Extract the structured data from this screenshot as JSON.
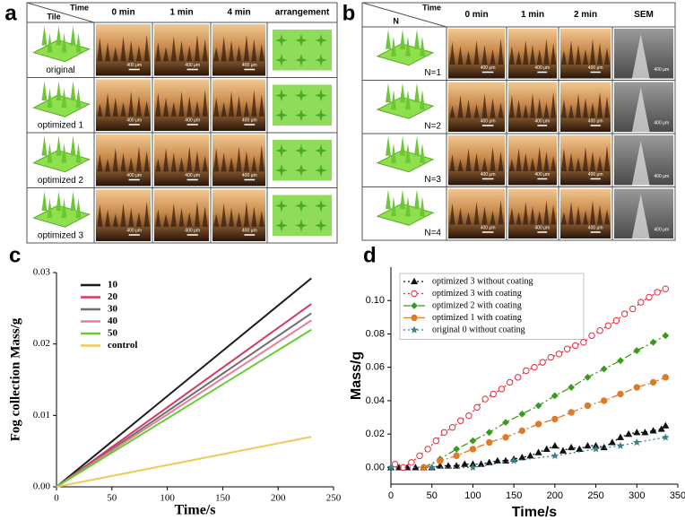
{
  "panels": {
    "a": {
      "label": "a",
      "corner_top": "Time",
      "corner_bottom": "Tile",
      "columns": [
        "0 min",
        "1 min",
        "4 min",
        "arrangement"
      ],
      "rows": [
        "original",
        "optimized 1",
        "optimized 2",
        "optimized 3"
      ],
      "scale_bar": "400 μm"
    },
    "b": {
      "label": "b",
      "corner_top": "Time",
      "corner_bottom": "N",
      "columns": [
        "0 min",
        "1 min",
        "2 min",
        "SEM"
      ],
      "rows": [
        "N=1",
        "N=2",
        "N=3",
        "N=4"
      ],
      "scale_bar": "400 μm"
    },
    "c": {
      "label": "c"
    },
    "d": {
      "label": "d"
    }
  },
  "chart_data": [
    {
      "type": "line",
      "xlabel": "Time/s",
      "ylabel": "Fog collection Mass/g",
      "x": [
        0,
        230
      ],
      "series": [
        {
          "name": "10",
          "color": "#1a1a1a",
          "values": [
            0,
            0.0292
          ]
        },
        {
          "name": "20",
          "color": "#d8395e",
          "values": [
            0,
            0.0256
          ]
        },
        {
          "name": "30",
          "color": "#6e6e6e",
          "values": [
            0,
            0.0243
          ]
        },
        {
          "name": "40",
          "color": "#e67d9c",
          "values": [
            0,
            0.0233
          ]
        },
        {
          "name": "50",
          "color": "#66cc33",
          "values": [
            0,
            0.022
          ]
        },
        {
          "name": "control",
          "color": "#f2c75c",
          "values": [
            0,
            0.007
          ]
        }
      ],
      "xlim": [
        0,
        250
      ],
      "xticks": [
        0,
        50,
        100,
        150,
        200,
        250
      ],
      "ylim": [
        0,
        0.03
      ],
      "yticks": [
        {
          "value": 0,
          "label": "0.00"
        },
        {
          "value": 0.01,
          "label": "0.01"
        },
        {
          "value": 0.02,
          "label": "0.02"
        },
        {
          "value": 0.03,
          "label": "0.03"
        }
      ],
      "legend": "upper-left"
    },
    {
      "type": "scatter",
      "xlabel": "Time/s",
      "ylabel": "Mass/g",
      "series": [
        {
          "name": "optimized 3 without coating",
          "color": "#111111",
          "marker": "triangle",
          "dash": "2,3",
          "x": [
            0,
            10,
            20,
            30,
            40,
            50,
            60,
            70,
            80,
            90,
            100,
            110,
            120,
            130,
            140,
            150,
            160,
            170,
            180,
            190,
            200,
            210,
            220,
            230,
            240,
            250,
            260,
            270,
            280,
            290,
            300,
            310,
            320,
            330,
            335
          ],
          "values": [
            0,
            0,
            0,
            0,
            0,
            0,
            0.001,
            0.001,
            0.001,
            0.002,
            0.002,
            0.002,
            0.003,
            0.004,
            0.004,
            0.005,
            0.006,
            0.007,
            0.009,
            0.011,
            0.013,
            0.01,
            0.012,
            0.011,
            0.013,
            0.013,
            0.012,
            0.015,
            0.018,
            0.02,
            0.021,
            0.021,
            0.022,
            0.023,
            0.025
          ]
        },
        {
          "name": "optimized 3 with coating",
          "color": "#e8283a",
          "marker": "open-circle",
          "dash": "2,3",
          "x": [
            5,
            15,
            25,
            35,
            45,
            55,
            65,
            75,
            85,
            95,
            105,
            115,
            125,
            135,
            145,
            155,
            165,
            175,
            185,
            195,
            205,
            215,
            225,
            235,
            245,
            255,
            265,
            275,
            285,
            295,
            305,
            315,
            325,
            335
          ],
          "values": [
            0.002,
            0,
            0.003,
            0.007,
            0.011,
            0.016,
            0.021,
            0.024,
            0.028,
            0.031,
            0.036,
            0.041,
            0.044,
            0.047,
            0.051,
            0.054,
            0.058,
            0.06,
            0.063,
            0.066,
            0.068,
            0.071,
            0.073,
            0.075,
            0.079,
            0.082,
            0.085,
            0.088,
            0.092,
            0.095,
            0.099,
            0.102,
            0.105,
            0.107
          ]
        },
        {
          "name": "optimized 2 with coating",
          "color": "#3a9a1c",
          "marker": "diamond",
          "dash": "8,3,2,3",
          "x": [
            40,
            60,
            80,
            100,
            120,
            140,
            160,
            180,
            200,
            220,
            240,
            260,
            280,
            300,
            320,
            335
          ],
          "values": [
            0,
            0.005,
            0.011,
            0.016,
            0.021,
            0.027,
            0.032,
            0.037,
            0.043,
            0.048,
            0.054,
            0.059,
            0.064,
            0.07,
            0.075,
            0.079
          ]
        },
        {
          "name": "optimized 1 with coating",
          "color": "#e07a26",
          "marker": "circle",
          "dash": "8,3,2,3",
          "x": [
            40,
            60,
            80,
            100,
            120,
            140,
            160,
            180,
            200,
            220,
            240,
            260,
            280,
            300,
            320,
            335
          ],
          "values": [
            0,
            0.004,
            0.007,
            0.011,
            0.015,
            0.018,
            0.022,
            0.026,
            0.029,
            0.033,
            0.037,
            0.04,
            0.044,
            0.048,
            0.051,
            0.054
          ]
        },
        {
          "name": "original 0 without coating",
          "color": "#3f7f86",
          "marker": "star",
          "dash": "2,3",
          "x": [
            0,
            50,
            100,
            150,
            200,
            250,
            280,
            300,
            335
          ],
          "values": [
            0,
            0,
            0,
            0.004,
            0.007,
            0.011,
            0.013,
            0.015,
            0.018
          ]
        }
      ],
      "xlim": [
        0,
        350
      ],
      "xticks": [
        0,
        50,
        100,
        150,
        200,
        250,
        300,
        350
      ],
      "ylim": [
        -0.01,
        0.12
      ],
      "yticks": [
        {
          "value": 0,
          "label": "0.00"
        },
        {
          "value": 0.02,
          "label": "0.02"
        },
        {
          "value": 0.04,
          "label": "0.04"
        },
        {
          "value": 0.06,
          "label": "0.06"
        },
        {
          "value": 0.08,
          "label": "0.08"
        },
        {
          "value": 0.1,
          "label": "0.10"
        }
      ],
      "legend": "upper-left"
    }
  ]
}
